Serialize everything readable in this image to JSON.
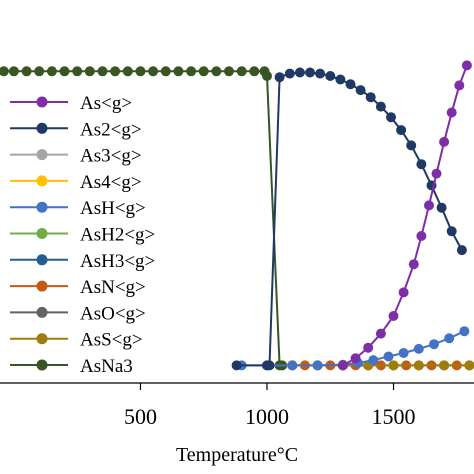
{
  "chart_data": {
    "type": "line",
    "xlabel": "Temperature°C",
    "xticks": [
      500,
      1000,
      1500
    ],
    "xlim": [
      -55,
      1818
    ],
    "ylim": [
      -1.5,
      28
    ],
    "legend": {
      "placement": "top-left",
      "highlight_color": "#b22222"
    },
    "series": [
      {
        "name": "As<g>",
        "color": "#7e2fa8",
        "points": [
          [
            1300,
            0
          ],
          [
            1350,
            0.6
          ],
          [
            1400,
            1.5
          ],
          [
            1450,
            2.7
          ],
          [
            1500,
            4.2
          ],
          [
            1540,
            6.2
          ],
          [
            1580,
            8.6
          ],
          [
            1610,
            11
          ],
          [
            1640,
            13.6
          ],
          [
            1670,
            16.3
          ],
          [
            1700,
            19
          ],
          [
            1730,
            21.5
          ],
          [
            1760,
            23.8
          ],
          [
            1790,
            25.5
          ]
        ]
      },
      {
        "name": "As2<g>",
        "color": "#203864",
        "points": [
          [
            880,
            0
          ],
          [
            1000,
            0
          ],
          [
            1010,
            0
          ],
          [
            1050,
            24.5
          ],
          [
            1090,
            24.8
          ],
          [
            1130,
            24.9
          ],
          [
            1170,
            24.9
          ],
          [
            1210,
            24.8
          ],
          [
            1250,
            24.6
          ],
          [
            1290,
            24.3
          ],
          [
            1330,
            23.9
          ],
          [
            1370,
            23.4
          ],
          [
            1410,
            22.8
          ],
          [
            1450,
            22
          ],
          [
            1490,
            21.1
          ],
          [
            1530,
            20
          ],
          [
            1570,
            18.7
          ],
          [
            1610,
            17.1
          ],
          [
            1650,
            15.3
          ],
          [
            1690,
            13.4
          ],
          [
            1730,
            11.4
          ],
          [
            1770,
            9.8
          ]
        ]
      },
      {
        "name": "As3<g>",
        "color": "#a5a5a5",
        "points": []
      },
      {
        "name": "As4<g>",
        "color": "#ffc000",
        "points": [
          [
            1100,
            0
          ],
          [
            1200,
            0
          ],
          [
            1300,
            0
          ],
          [
            1400,
            0
          ],
          [
            1500,
            0
          ],
          [
            1600,
            0
          ],
          [
            1700,
            0
          ],
          [
            1800,
            0
          ]
        ]
      },
      {
        "name": "AsH<g>",
        "color": "#4472c4",
        "points": [
          [
            900,
            0
          ],
          [
            1000,
            0
          ],
          [
            1100,
            0
          ],
          [
            1200,
            0
          ],
          [
            1300,
            0.05
          ],
          [
            1360,
            0.2
          ],
          [
            1420,
            0.45
          ],
          [
            1480,
            0.75
          ],
          [
            1540,
            1.05
          ],
          [
            1600,
            1.4
          ],
          [
            1660,
            1.8
          ],
          [
            1720,
            2.3
          ],
          [
            1780,
            2.9
          ]
        ]
      },
      {
        "name": "AsH2<g>",
        "color": "#70ad47",
        "points": []
      },
      {
        "name": "AsH3<g>",
        "color": "#255e91",
        "points": []
      },
      {
        "name": "AsN<g>",
        "color": "#c55a11",
        "points": [
          [
            1100,
            0
          ],
          [
            1150,
            0
          ],
          [
            1200,
            0
          ],
          [
            1250,
            0
          ],
          [
            1300,
            0
          ],
          [
            1350,
            0
          ],
          [
            1400,
            0
          ],
          [
            1450,
            0
          ],
          [
            1500,
            0
          ],
          [
            1550,
            0
          ],
          [
            1600,
            0
          ],
          [
            1650,
            0
          ],
          [
            1700,
            0
          ],
          [
            1750,
            0
          ],
          [
            1800,
            0
          ]
        ]
      },
      {
        "name": "AsO<g>",
        "color": "#636363",
        "points": []
      },
      {
        "name": "AsS<g>",
        "color": "#9e7d0f",
        "points": [
          [
            1100,
            0
          ],
          [
            1200,
            0
          ],
          [
            1300,
            0
          ],
          [
            1400,
            0
          ],
          [
            1500,
            0
          ],
          [
            1600,
            0
          ],
          [
            1700,
            0
          ],
          [
            1800,
            0
          ]
        ]
      },
      {
        "name": "AsNa3",
        "color": "#375623",
        "points": [
          [
            -40,
            25
          ],
          [
            0,
            25
          ],
          [
            50,
            25
          ],
          [
            100,
            25
          ],
          [
            150,
            25
          ],
          [
            200,
            25
          ],
          [
            250,
            25
          ],
          [
            300,
            25
          ],
          [
            350,
            25
          ],
          [
            400,
            25
          ],
          [
            450,
            25
          ],
          [
            500,
            25
          ],
          [
            550,
            25
          ],
          [
            600,
            25
          ],
          [
            650,
            25
          ],
          [
            700,
            25
          ],
          [
            750,
            25
          ],
          [
            800,
            25
          ],
          [
            850,
            25
          ],
          [
            900,
            25
          ],
          [
            950,
            25
          ],
          [
            990,
            25
          ],
          [
            1000,
            24.6
          ],
          [
            1050,
            0
          ],
          [
            1060,
            0
          ]
        ]
      }
    ]
  }
}
